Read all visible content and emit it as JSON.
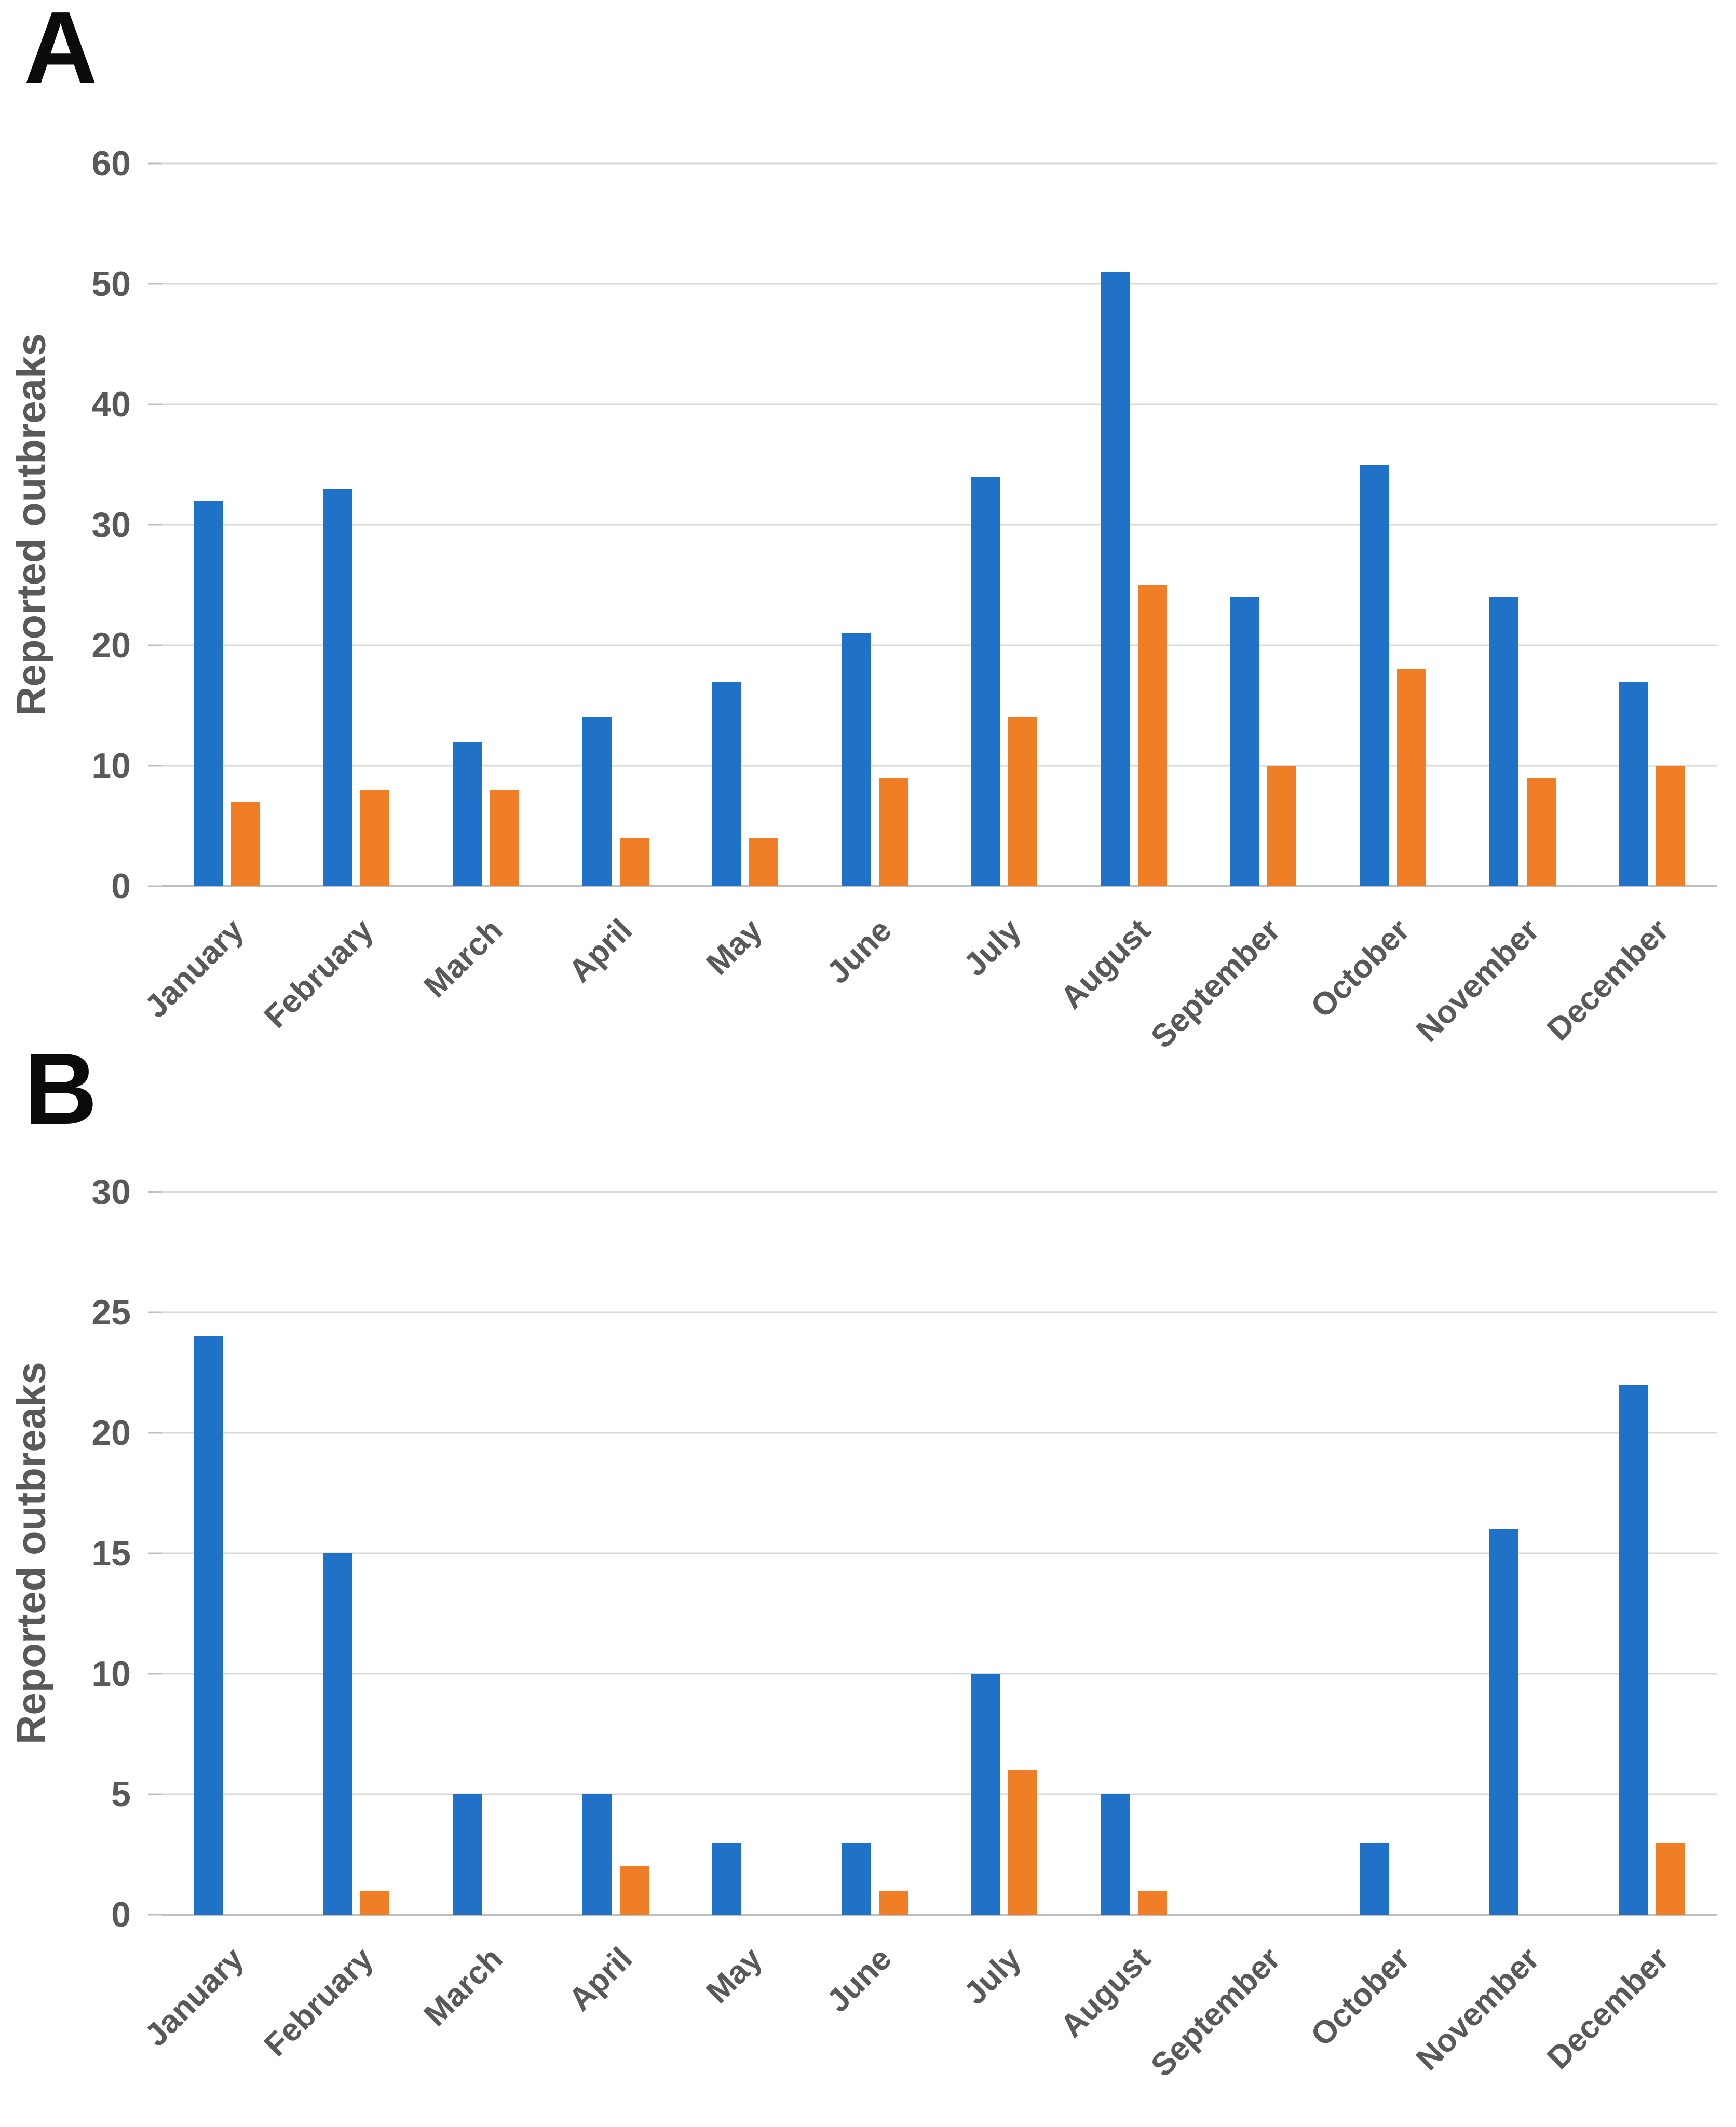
{
  "page": {
    "background": "#ffffff"
  },
  "colors": {
    "series_blue": "#2072c8",
    "series_orange": "#f07e26",
    "gridline": "#d9d9d9",
    "axis_line": "#bfbfbf",
    "label_gray": "#595959",
    "panel_letter": "#0b0b0b"
  },
  "chart_data": [
    {
      "type": "bar",
      "panel_label": "A",
      "title": "",
      "xlabel": "",
      "ylabel": "Reported outbreaks",
      "ylim": [
        0,
        60
      ],
      "ytick_step": 10,
      "yticks": [
        60,
        50,
        40,
        30,
        20,
        10,
        0
      ],
      "grid": true,
      "legend_position": "none",
      "categories": [
        "January",
        "February",
        "March",
        "April",
        "May",
        "June",
        "July",
        "August",
        "September",
        "October",
        "November",
        "December"
      ],
      "series": [
        {
          "name": "blue",
          "color": "#2072c8",
          "values": [
            32,
            33,
            12,
            14,
            17,
            21,
            34,
            51,
            24,
            35,
            24,
            17
          ]
        },
        {
          "name": "orange",
          "color": "#f07e26",
          "values": [
            7,
            8,
            8,
            4,
            4,
            9,
            14,
            25,
            10,
            18,
            9,
            10
          ]
        }
      ]
    },
    {
      "type": "bar",
      "panel_label": "B",
      "title": "",
      "xlabel": "",
      "ylabel": "Reported outbreaks",
      "ylim": [
        0,
        30
      ],
      "ytick_step": 5,
      "yticks": [
        30,
        25,
        20,
        15,
        10,
        5,
        0
      ],
      "grid": true,
      "legend_position": "none",
      "categories": [
        "January",
        "February",
        "March",
        "April",
        "May",
        "June",
        "July",
        "August",
        "September",
        "October",
        "November",
        "December"
      ],
      "series": [
        {
          "name": "blue",
          "color": "#2072c8",
          "values": [
            24,
            15,
            5,
            5,
            3,
            3,
            10,
            5,
            0,
            3,
            16,
            22
          ]
        },
        {
          "name": "orange",
          "color": "#f07e26",
          "values": [
            0,
            1,
            0,
            2,
            0,
            1,
            6,
            1,
            0,
            0,
            0,
            3
          ]
        }
      ]
    }
  ]
}
